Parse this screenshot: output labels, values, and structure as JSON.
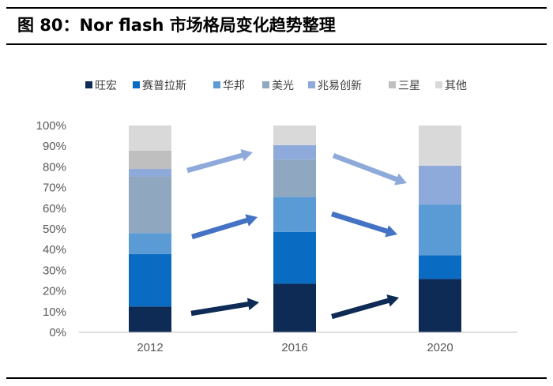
{
  "title": "图 80：Nor flash  市场格局变化趋势整理",
  "chart_data": {
    "type": "bar",
    "stacked": true,
    "categories": [
      "2012",
      "2016",
      "2020"
    ],
    "ylim": [
      0,
      100
    ],
    "yticks": [
      "0%",
      "10%",
      "20%",
      "30%",
      "40%",
      "50%",
      "60%",
      "70%",
      "80%",
      "90%",
      "100%"
    ],
    "legend_position": "top",
    "grid": false,
    "series": [
      {
        "name": "旺宏",
        "color": "#0d2b55",
        "values": [
          12.5,
          23.5,
          25.8
        ]
      },
      {
        "name": "赛普拉斯",
        "color": "#0a6bc2",
        "values": [
          25.3,
          25.0,
          11.5
        ]
      },
      {
        "name": "华邦",
        "color": "#5b9bd5",
        "values": [
          10.2,
          17.0,
          24.5
        ]
      },
      {
        "name": "美光",
        "color": "#8fa8c0",
        "values": [
          27.4,
          18.0,
          0
        ]
      },
      {
        "name": "兆易创新",
        "color": "#8eaadb",
        "values": [
          3.6,
          7.0,
          18.8
        ]
      },
      {
        "name": "三星",
        "color": "#bfbfbf",
        "values": [
          8.8,
          0,
          0
        ]
      },
      {
        "name": "其他",
        "color": "#d9d9d9",
        "values": [
          12.2,
          9.5,
          19.4
        ]
      }
    ]
  }
}
